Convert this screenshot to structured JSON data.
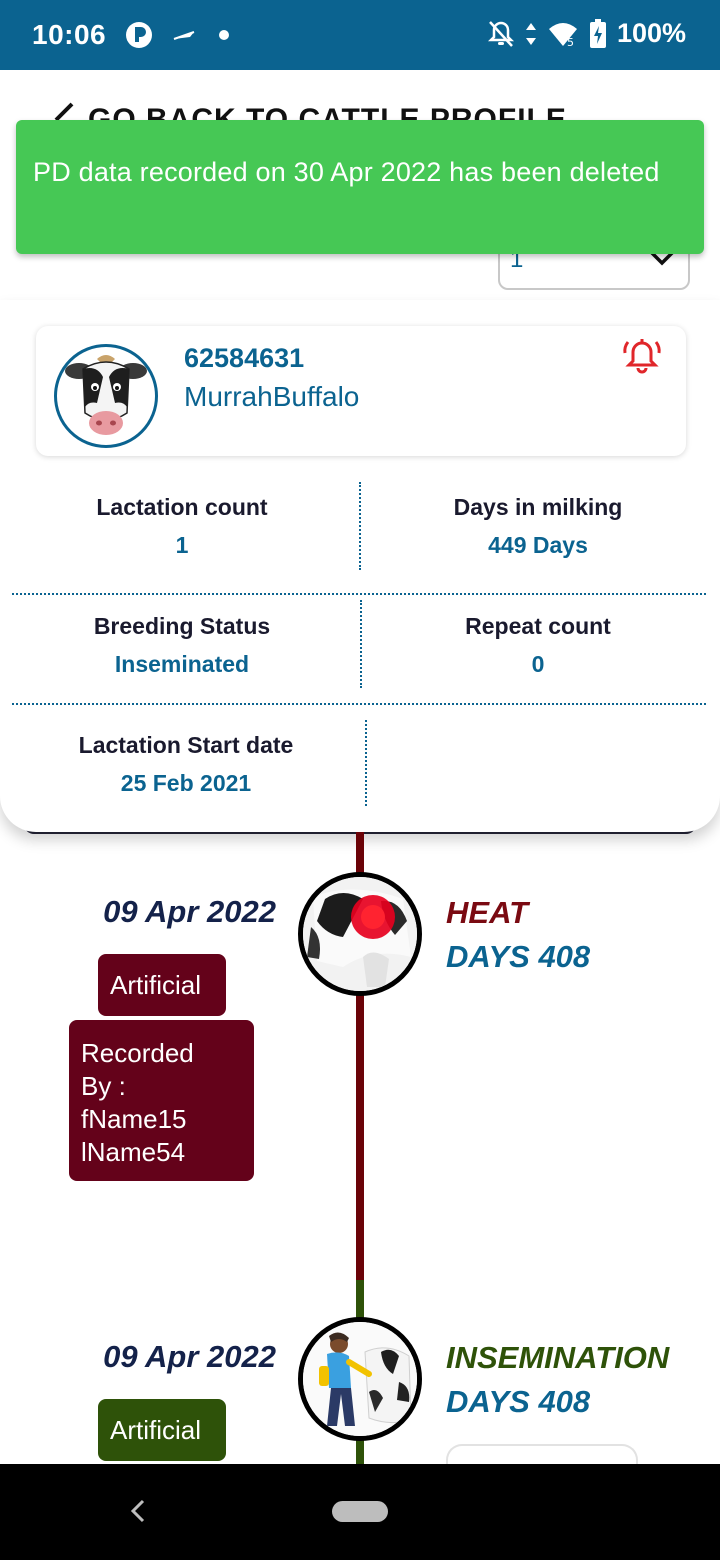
{
  "status_bar": {
    "time": "10:06",
    "battery": "100%",
    "network_badge": "5",
    "background_color": "#0b6390"
  },
  "header": {
    "back_label": "GO BACK TO CATTLE PROFILE"
  },
  "lactation_selector": {
    "value": "1"
  },
  "toast": {
    "message": "PD data recorded on 30 Apr 2022 has been deleted",
    "color": "#46c855"
  },
  "cattle": {
    "id": "62584631",
    "breed": "MurrahBuffalo",
    "alert_icon": "bell-alert-icon"
  },
  "stats": {
    "lactation_count": {
      "label": "Lactation count",
      "value": "1"
    },
    "days_in_milking": {
      "label": "Days in milking",
      "value": "449 Days"
    },
    "breeding_status": {
      "label": "Breeding Status",
      "value": "Inseminated"
    },
    "repeat_count": {
      "label": "Repeat count",
      "value": "0"
    },
    "lactation_start": {
      "label": "Lactation Start date",
      "value": "25 Feb 2021"
    }
  },
  "timeline": {
    "events": [
      {
        "date": "09 Apr 2022",
        "event_type": "HEAT",
        "days": "DAYS 408",
        "method": "Artificial",
        "recorded_by": "Recorded By : fName15 lName54",
        "event_color": "#7a0a12",
        "icon": "heat-cow-icon"
      },
      {
        "date": "09 Apr 2022",
        "event_type": "INSEMINATION",
        "days": "DAYS 408",
        "method": "Artificial",
        "event_color": "#2e5209",
        "icon": "insemination-icon"
      }
    ]
  }
}
